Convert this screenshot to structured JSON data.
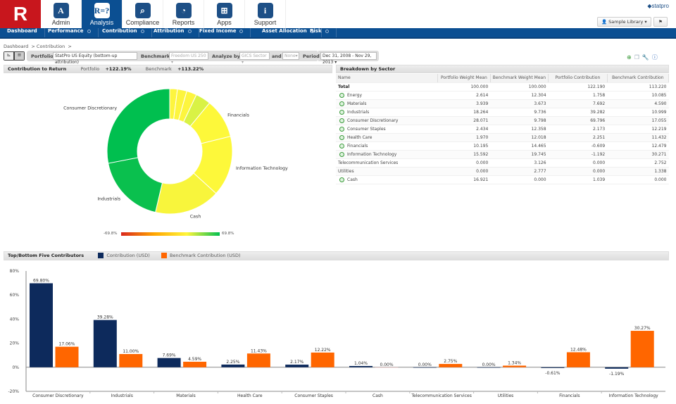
{
  "logo": "R",
  "nav_tiles": [
    {
      "label": "Admin",
      "icon": "admin-briefcase-icon",
      "glyph": "A"
    },
    {
      "label": "Analysis",
      "icon": "analysis-board-icon",
      "glyph": "R=?"
    },
    {
      "label": "Compliance",
      "icon": "compliance-magnifier-icon",
      "glyph": "⌕"
    },
    {
      "label": "Reports",
      "icon": "reports-chart-icon",
      "glyph": "◔"
    },
    {
      "label": "Apps",
      "icon": "apps-basket-icon",
      "glyph": "⊞"
    },
    {
      "label": "Support",
      "icon": "support-info-icon",
      "glyph": "i"
    }
  ],
  "brand": "statpro",
  "user_menu": "Sample Library",
  "menu": [
    "Dashboard",
    "Performance",
    "Contribution",
    "Attribution",
    "Fixed Income",
    "Asset Allocation",
    "Risk"
  ],
  "breadcrumb": [
    "Dashboard",
    "> Contribution",
    ">"
  ],
  "toolbar": {
    "portfolio_label": "Portfolio",
    "portfolio": "StatPro US Equity (bottom-up attribution)",
    "benchmark_label": "Benchmark",
    "benchmark": "Freedom US 250",
    "analyze_label": "Analyze by",
    "analyze": "GICS Sector",
    "and_label": "and",
    "and_value": "None",
    "period_label": "Period",
    "period": "Dec 31, 2008 - Nov 29, 2013"
  },
  "contribution_panel": {
    "title": "Contribution to Return",
    "portfolio_label": "Portfolio",
    "portfolio_value": "+122.19%",
    "benchmark_label": "Benchmark",
    "benchmark_value": "+113.22%",
    "scale_min": "-69.8%",
    "scale_max": "69.8%"
  },
  "donut": {
    "slices": [
      {
        "name": "Health Care",
        "weight": 1.97,
        "color": "#fdf53e",
        "label": ""
      },
      {
        "name": "Consumer Staples",
        "weight": 2.434,
        "color": "#fdf53e",
        "label": ""
      },
      {
        "name": "Energy",
        "weight": 2.614,
        "color": "#fdf53e",
        "label": ""
      },
      {
        "name": "Materials",
        "weight": 3.939,
        "color": "#d9f245",
        "label": ""
      },
      {
        "name": "Financials",
        "weight": 10.195,
        "color": "#fdf83a",
        "label": "Financials"
      },
      {
        "name": "Information Technology",
        "weight": 15.592,
        "color": "#fdf83a",
        "label": "Information Technology"
      },
      {
        "name": "Cash",
        "weight": 16.921,
        "color": "#f8f53c",
        "label": "Cash"
      },
      {
        "name": "Industrials",
        "weight": 18.264,
        "color": "#0ac04e",
        "label": "Industrials"
      },
      {
        "name": "Consumer Discretionary",
        "weight": 28.071,
        "color": "#00bf4f",
        "label": "Consumer Discretionary"
      }
    ]
  },
  "breakdown": {
    "title": "Breakdown by Sector",
    "columns": [
      "Name",
      "Portfolio Weight Mean",
      "Benchmark Weight Mean",
      "Portfolio Contribution",
      "Benchmark Contribution"
    ],
    "rows": [
      {
        "name": "Total",
        "bold": true,
        "zoom": false,
        "v": [
          "100.000",
          "100.000",
          "122.190",
          "113.220"
        ]
      },
      {
        "name": "Energy",
        "zoom": true,
        "v": [
          "2.614",
          "12.304",
          "1.758",
          "10.085"
        ]
      },
      {
        "name": "Materials",
        "zoom": true,
        "v": [
          "3.939",
          "3.673",
          "7.692",
          "4.590"
        ]
      },
      {
        "name": "Industrials",
        "zoom": true,
        "v": [
          "18.264",
          "9.736",
          "39.282",
          "10.999"
        ]
      },
      {
        "name": "Consumer Discretionary",
        "zoom": true,
        "v": [
          "28.071",
          "9.798",
          "69.796",
          "17.055"
        ]
      },
      {
        "name": "Consumer Staples",
        "zoom": true,
        "v": [
          "2.434",
          "12.358",
          "2.173",
          "12.219"
        ]
      },
      {
        "name": "Health Care",
        "zoom": true,
        "v": [
          "1.970",
          "12.018",
          "2.251",
          "11.432"
        ]
      },
      {
        "name": "Financials",
        "zoom": true,
        "v": [
          "10.195",
          "14.465",
          "-0.609",
          "12.479"
        ]
      },
      {
        "name": "Information Technology",
        "zoom": true,
        "v": [
          "15.592",
          "19.745",
          "-1.192",
          "30.271"
        ]
      },
      {
        "name": "Telecommunication Services",
        "zoom": false,
        "v": [
          "0.000",
          "3.126",
          "0.000",
          "2.752"
        ]
      },
      {
        "name": "Utilities",
        "zoom": false,
        "v": [
          "0.000",
          "2.777",
          "0.000",
          "1.338"
        ]
      },
      {
        "name": "Cash",
        "zoom": true,
        "v": [
          "16.921",
          "0.000",
          "1.039",
          "0.000"
        ]
      }
    ]
  },
  "chart_data": {
    "type": "bar",
    "title": "Top/Bottom Five Contributors",
    "categories": [
      "Consumer Discretionary",
      "Industrials",
      "Materials",
      "Health Care",
      "Consumer Staples",
      "Cash",
      "Telecommunication Services",
      "Utilities",
      "Financials",
      "Information Technology"
    ],
    "series": [
      {
        "name": "Contribution (USD)",
        "color": "#0d2a5c",
        "values": [
          69.8,
          39.28,
          7.69,
          2.25,
          2.17,
          1.04,
          0.0,
          0.0,
          -0.61,
          -1.19
        ],
        "labels": [
          "69.80%",
          "39.28%",
          "7.69%",
          "2.25%",
          "2.17%",
          "1.04%",
          "0.00%",
          "0.00%",
          "-0.61%",
          "-1.19%"
        ]
      },
      {
        "name": "Benchmark Contribution (USD)",
        "color": "#ff6600",
        "values": [
          17.06,
          11.0,
          4.59,
          11.43,
          12.22,
          0.0,
          2.75,
          1.34,
          12.48,
          30.27
        ],
        "labels": [
          "17.06%",
          "11.00%",
          "4.59%",
          "11.43%",
          "12.22%",
          "0.00%",
          "2.75%",
          "1.34%",
          "12.48%",
          "30.27%"
        ]
      }
    ],
    "ylim": [
      -20,
      80
    ],
    "yticks": [
      "80%",
      "60%",
      "40%",
      "20%",
      "0%",
      "-20%"
    ],
    "legend": "top",
    "grid": false
  }
}
